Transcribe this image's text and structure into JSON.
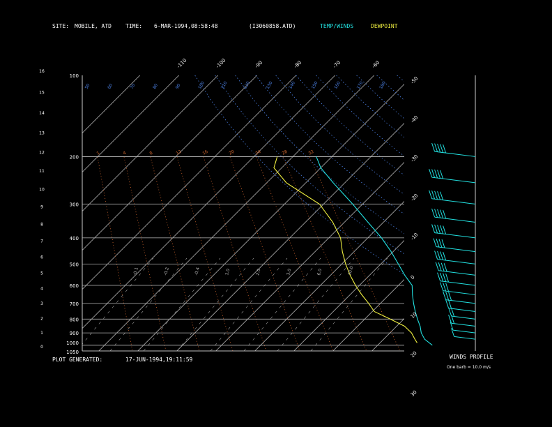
{
  "header": {
    "site_label": "SITE:",
    "site_value": "MOBILE, ATD",
    "time_label": "TIME:",
    "time_value": "6-MAR-1994,08:58:48",
    "file": "(I3060858.ATD)",
    "legend_temp": "TEMP/WINDS",
    "legend_dew": "DEWPOINT"
  },
  "footer": {
    "generated_label": "PLOT GENERATED:",
    "generated_value": "17-JUN-1994,19:11:59"
  },
  "winds_panel": {
    "title": "WINDS PROFILE",
    "note": "One barb = 10.0 m/s"
  },
  "colors": {
    "temp": "#22e0e0",
    "dewpoint": "#f0f040",
    "isobar": "#b8b8b8",
    "isotherm": "#c8c8c8",
    "dry_adiabat": "#4a7ee0",
    "mixing_ratio": "#d86a30",
    "moist_adiabat": "#a0a0a0"
  },
  "chart_data": {
    "type": "skew-t",
    "pressure_levels": [
      "100",
      "200",
      "300",
      "400",
      "500",
      "600",
      "700",
      "800",
      "900",
      "1000",
      "1050"
    ],
    "height_km_ticks": [
      "0",
      "1",
      "2",
      "3",
      "4",
      "5",
      "6",
      "7",
      "8",
      "9",
      "10",
      "11",
      "12",
      "13",
      "14",
      "15",
      "16"
    ],
    "temperature_labels": [
      "-110",
      "-100",
      "-90",
      "-80",
      "-70",
      "-60",
      "-50",
      "-40",
      "-30",
      "-20",
      "-10",
      "0",
      "10",
      "20",
      "30"
    ],
    "dry_adiabat_labels": [
      "50",
      "60",
      "70",
      "80",
      "90",
      "100",
      "110",
      "120",
      "130",
      "140",
      "150",
      "160",
      "170",
      "180"
    ],
    "mixing_ratio_labels": [
      "1",
      "4",
      "8",
      "12",
      "16",
      "20",
      "24",
      "28",
      "32"
    ],
    "moist_adiabat_labels": [
      "-0.1",
      "-0.2",
      "-0.4",
      "1.0",
      "2.0",
      "3.0",
      "6.0",
      "10.0"
    ],
    "temperature_profile": [
      {
        "p": 1000,
        "t": 24.0
      },
      {
        "p": 950,
        "t": 20.5
      },
      {
        "p": 900,
        "t": 18.0
      },
      {
        "p": 850,
        "t": 16.0
      },
      {
        "p": 800,
        "t": 13.5
      },
      {
        "p": 750,
        "t": 11.0
      },
      {
        "p": 700,
        "t": 8.5
      },
      {
        "p": 650,
        "t": 6.0
      },
      {
        "p": 600,
        "t": 3.5
      },
      {
        "p": 550,
        "t": -1.0
      },
      {
        "p": 500,
        "t": -5.5
      },
      {
        "p": 450,
        "t": -10.5
      },
      {
        "p": 400,
        "t": -16.5
      },
      {
        "p": 350,
        "t": -24.0
      },
      {
        "p": 300,
        "t": -32.5
      },
      {
        "p": 250,
        "t": -43.0
      },
      {
        "p": 220,
        "t": -50.0
      },
      {
        "p": 200,
        "t": -54.0
      }
    ],
    "dewpoint_profile": [
      {
        "p": 980,
        "t": 19.5
      },
      {
        "p": 950,
        "t": 18.0
      },
      {
        "p": 900,
        "t": 15.5
      },
      {
        "p": 850,
        "t": 12.0
      },
      {
        "p": 800,
        "t": 6.5
      },
      {
        "p": 750,
        "t": 0.5
      },
      {
        "p": 700,
        "t": -3.0
      },
      {
        "p": 650,
        "t": -7.0
      },
      {
        "p": 600,
        "t": -11.0
      },
      {
        "p": 550,
        "t": -15.0
      },
      {
        "p": 500,
        "t": -19.0
      },
      {
        "p": 450,
        "t": -23.0
      },
      {
        "p": 400,
        "t": -27.0
      },
      {
        "p": 350,
        "t": -33.0
      },
      {
        "p": 300,
        "t": -41.0
      },
      {
        "p": 250,
        "t": -55.0
      },
      {
        "p": 220,
        "t": -62.0
      },
      {
        "p": 200,
        "t": -64.0
      }
    ],
    "wind_profile": [
      {
        "p": 950,
        "spd": 10,
        "dir": 200
      },
      {
        "p": 900,
        "spd": 12,
        "dir": 220
      },
      {
        "p": 850,
        "spd": 15,
        "dir": 240
      },
      {
        "p": 800,
        "spd": 15,
        "dir": 250
      },
      {
        "p": 750,
        "spd": 20,
        "dir": 255
      },
      {
        "p": 700,
        "spd": 25,
        "dir": 260
      },
      {
        "p": 650,
        "spd": 30,
        "dir": 265
      },
      {
        "p": 600,
        "spd": 35,
        "dir": 265
      },
      {
        "p": 550,
        "spd": 38,
        "dir": 270
      },
      {
        "p": 500,
        "spd": 40,
        "dir": 270
      },
      {
        "p": 450,
        "spd": 42,
        "dir": 270
      },
      {
        "p": 400,
        "spd": 45,
        "dir": 275
      },
      {
        "p": 350,
        "spd": 45,
        "dir": 275
      },
      {
        "p": 300,
        "spd": 50,
        "dir": 275
      },
      {
        "p": 250,
        "spd": 50,
        "dir": 270
      },
      {
        "p": 200,
        "spd": 45,
        "dir": 270
      }
    ]
  }
}
